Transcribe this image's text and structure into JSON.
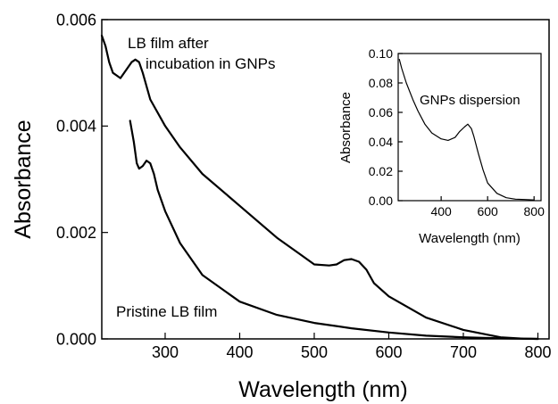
{
  "chart_data": [
    {
      "type": "line",
      "title": "",
      "xlabel": "Wavelength (nm)",
      "ylabel": "Absorbance",
      "xlim": [
        215,
        815
      ],
      "ylim": [
        0,
        0.006
      ],
      "xticks": [
        "300",
        "400",
        "500",
        "600",
        "700",
        "800"
      ],
      "yticks": [
        "0.000",
        "0.002",
        "0.004",
        "0.006"
      ],
      "grid": false,
      "annotations": [
        "LB film after",
        "incubation in GNPs",
        "Pristine LB film"
      ],
      "series": [
        {
          "x": [
            215,
            220,
            225,
            230,
            240,
            250,
            255,
            260,
            265,
            270,
            280,
            300,
            320,
            350,
            400,
            450,
            480,
            500,
            520,
            530,
            540,
            550,
            560,
            570,
            580,
            600,
            650,
            700,
            750,
            780,
            800
          ],
          "y": [
            0.0057,
            0.0055,
            0.0052,
            0.005,
            0.0049,
            0.0051,
            0.0052,
            0.00525,
            0.0052,
            0.005,
            0.0045,
            0.004,
            0.0036,
            0.0031,
            0.0025,
            0.0019,
            0.0016,
            0.0014,
            0.00138,
            0.0014,
            0.00148,
            0.0015,
            0.00145,
            0.0013,
            0.00105,
            0.0008,
            0.0004,
            0.00017,
            3e-05,
            5e-06,
            0.0
          ]
        },
        {
          "x": [
            253,
            258,
            262,
            265,
            270,
            275,
            280,
            285,
            290,
            300,
            320,
            350,
            400,
            450,
            500,
            550,
            600,
            650,
            700,
            750,
            800
          ],
          "y": [
            0.0041,
            0.0037,
            0.0033,
            0.0032,
            0.00325,
            0.00335,
            0.0033,
            0.0031,
            0.0028,
            0.0024,
            0.0018,
            0.0012,
            0.0007,
            0.00045,
            0.0003,
            0.0002,
            0.00012,
            6e-05,
            3e-05,
            1e-05,
            0.0
          ]
        }
      ]
    },
    {
      "type": "line",
      "title": "",
      "xlabel": "Wavelength (nm)",
      "ylabel": "Absorbance",
      "xlim": [
        215,
        830
      ],
      "ylim": [
        0,
        0.1
      ],
      "xticks": [
        "400",
        "600",
        "800"
      ],
      "yticks": [
        "0.00",
        "0.02",
        "0.04",
        "0.06",
        "0.08",
        "0.10"
      ],
      "annotations": [
        "GNPs dispersion"
      ],
      "series": [
        {
          "x": [
            220,
            230,
            250,
            280,
            300,
            330,
            360,
            400,
            430,
            460,
            480,
            500,
            515,
            530,
            540,
            560,
            580,
            600,
            640,
            680,
            720,
            760,
            800
          ],
          "y": [
            0.096,
            0.09,
            0.08,
            0.068,
            0.061,
            0.052,
            0.046,
            0.042,
            0.041,
            0.043,
            0.047,
            0.05,
            0.052,
            0.049,
            0.044,
            0.032,
            0.021,
            0.012,
            0.005,
            0.002,
            0.001,
            0.0008,
            0.0005
          ]
        }
      ]
    }
  ]
}
